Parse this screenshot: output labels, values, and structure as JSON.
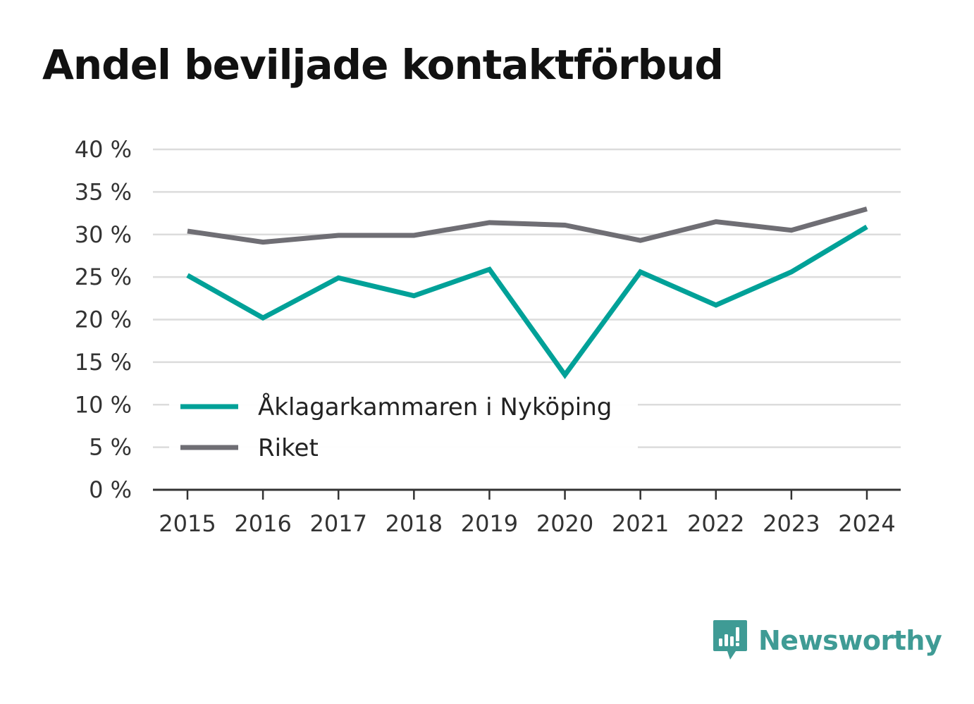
{
  "chart_data": {
    "type": "line",
    "title": "Andel beviljade kontaktförbud",
    "categories": [
      "2015",
      "2016",
      "2017",
      "2018",
      "2019",
      "2020",
      "2021",
      "2022",
      "2023",
      "2024"
    ],
    "series": [
      {
        "name": "Åklagarkammaren i Nyköping",
        "color": "#00a198",
        "values": [
          25.2,
          20.2,
          24.9,
          22.8,
          25.9,
          13.5,
          25.6,
          21.7,
          25.6,
          30.9
        ]
      },
      {
        "name": "Riket",
        "color": "#6f6e74",
        "values": [
          30.4,
          29.1,
          29.9,
          29.9,
          31.4,
          31.1,
          29.3,
          31.5,
          30.5,
          33.0
        ]
      }
    ],
    "yticks": [
      "0 %",
      "5 %",
      "10 %",
      "15 %",
      "20 %",
      "25 %",
      "30 %",
      "35 %",
      "40 %"
    ],
    "ylim": [
      0,
      40
    ],
    "grid": true,
    "legend_position": "bottom-left"
  },
  "brand": {
    "name": "Newsworthy",
    "color": "#3f9b95",
    "icon": "newsworthy-logo-icon"
  }
}
